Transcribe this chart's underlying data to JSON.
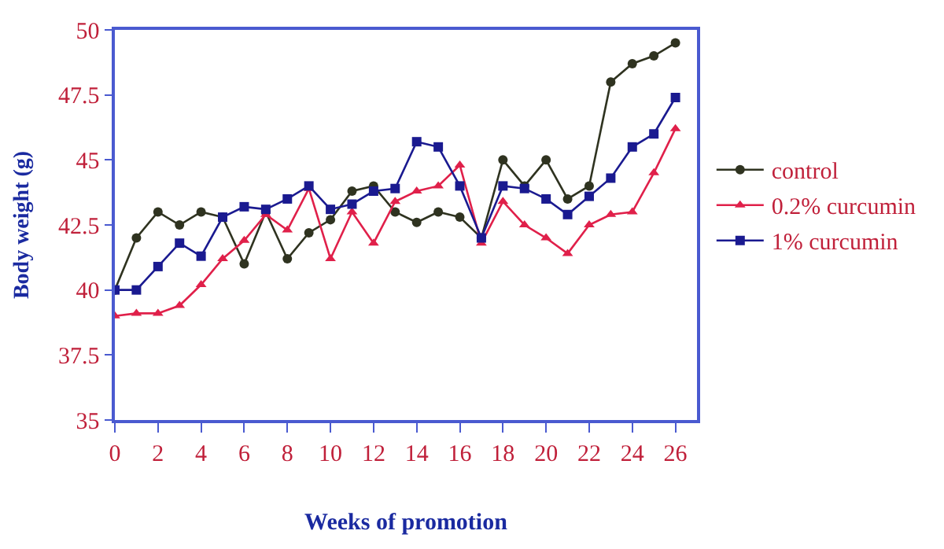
{
  "chart_data": {
    "type": "line",
    "xlabel": "Weeks of promotion",
    "ylabel": "Body weight (g)",
    "x": [
      0,
      1,
      2,
      3,
      4,
      5,
      6,
      7,
      8,
      9,
      10,
      11,
      12,
      13,
      14,
      15,
      16,
      17,
      18,
      19,
      20,
      21,
      22,
      23,
      24,
      25,
      26
    ],
    "series": [
      {
        "name": "control",
        "color": "#2f3320",
        "marker": "circle",
        "values": [
          40,
          42,
          43,
          42.5,
          43,
          42.8,
          41,
          43,
          41.2,
          42.2,
          42.7,
          43.8,
          44,
          43,
          42.6,
          43,
          42.8,
          42,
          45,
          44,
          45,
          43.5,
          44,
          48,
          48.7,
          49,
          49.5
        ]
      },
      {
        "name": "0.2% curcumin",
        "color": "#e0204a",
        "marker": "triangle",
        "values": [
          39,
          39.1,
          39.1,
          39.4,
          40.2,
          41.2,
          41.9,
          42.9,
          42.3,
          43.9,
          41.2,
          43,
          41.8,
          43.4,
          43.8,
          44,
          44.8,
          41.8,
          43.4,
          42.5,
          42,
          41.4,
          42.5,
          42.9,
          43,
          44.5,
          46.2
        ]
      },
      {
        "name": "1% curcumin",
        "color": "#1a1a90",
        "marker": "square",
        "values": [
          40,
          40,
          40.9,
          41.8,
          41.3,
          42.8,
          43.2,
          43.1,
          43.5,
          44,
          43.1,
          43.3,
          43.8,
          43.9,
          45.7,
          45.5,
          44,
          42,
          44,
          43.9,
          43.5,
          42.9,
          43.6,
          44.3,
          45.5,
          46,
          47.4
        ]
      }
    ],
    "xlim": [
      0,
      27
    ],
    "xticks": [
      0,
      2,
      4,
      6,
      8,
      10,
      12,
      14,
      16,
      18,
      20,
      22,
      24,
      26
    ],
    "ylim": [
      35,
      50
    ],
    "yticks": [
      35,
      37.5,
      40,
      42.5,
      45,
      47.5,
      50
    ],
    "legend": "right",
    "line_style": "solid"
  }
}
